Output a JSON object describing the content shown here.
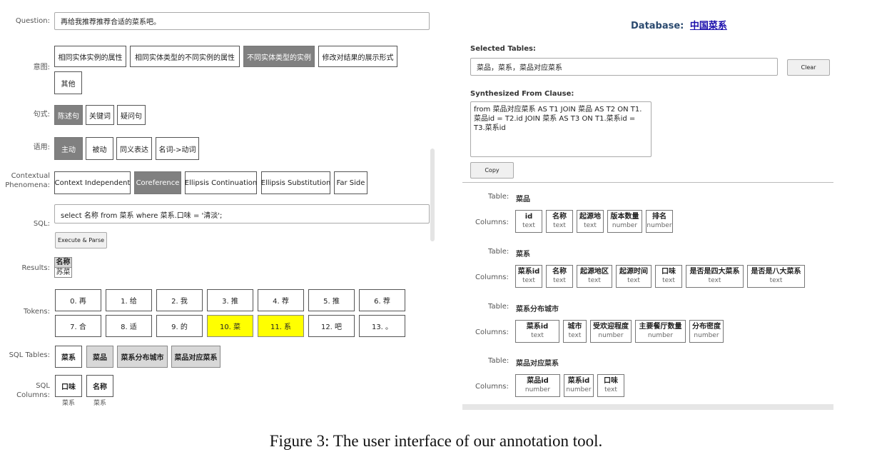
{
  "left": {
    "question": {
      "label": "Question:",
      "value": "再给我推荐推荐合适的菜系吧。"
    },
    "intent": {
      "label": "意图:",
      "options": [
        "相同实体实例的属性",
        "相同实体类型的不同实例的属性",
        "不同实体类型的实例",
        "修改对结果的展示形式",
        "其他"
      ],
      "selected": 2
    },
    "sentence_type": {
      "label": "句式:",
      "options": [
        "陈述句",
        "关键词",
        "疑问句"
      ],
      "selected": 0
    },
    "voice": {
      "label": "语用:",
      "options": [
        "主动",
        "被动",
        "同义表达",
        "名词->动词"
      ],
      "selected": 0
    },
    "contextual": {
      "label_1": "Contextual",
      "label_2": "Phenomena:",
      "options": [
        "Context Independent",
        "Coreference",
        "Ellipsis Continuation",
        "Ellipsis Substitution",
        "Far Side"
      ],
      "selected": 1
    },
    "sql": {
      "label": "SQL:",
      "value": "select 名称 from 菜系 where 菜系.口味 = '清淡';"
    },
    "execute_button": "Execute & Parse",
    "results": {
      "label": "Results:",
      "header": "名称",
      "value": "苏菜"
    },
    "tokens": {
      "label": "Tokens:",
      "items": [
        "0. 再",
        "1. 给",
        "2. 我",
        "3. 推",
        "4. 荐",
        "5. 推",
        "6. 荐",
        "7. 合",
        "8. 适",
        "9. 的",
        "10. 菜",
        "11. 系",
        "12. 吧",
        "13. 。"
      ],
      "highlighted": [
        10,
        11
      ]
    },
    "sql_tables": {
      "label": "SQL Tables:",
      "items": [
        "菜系",
        "菜品",
        "菜系分布城市",
        "菜品对应菜系"
      ]
    },
    "sql_columns": {
      "label_1": "SQL",
      "label_2": "Columns:",
      "items": [
        {
          "name": "口味",
          "table": "菜系"
        },
        {
          "name": "名称",
          "table": "菜系"
        }
      ]
    }
  },
  "right": {
    "db_label": "Database:",
    "db_name": "中国菜系",
    "selected_tables": {
      "label": "Selected Tables:",
      "value": "菜品，菜系，菜品对应菜系"
    },
    "clear_button": "Clear",
    "from_clause": {
      "label": "Synthesized From Clause:",
      "value": "from 菜品对应菜系 AS T1 JOIN 菜品 AS T2 ON T1.菜品id = T2.id JOIN 菜系 AS T3 ON T1.菜系id = T3.菜系id"
    },
    "copy_button": "Copy",
    "table_label": "Table:",
    "columns_label": "Columns:",
    "tables": [
      {
        "name": "菜品",
        "columns": [
          {
            "n": "id",
            "t": "text"
          },
          {
            "n": "名称",
            "t": "text"
          },
          {
            "n": "起源地",
            "t": "text"
          },
          {
            "n": "版本数量",
            "t": "number"
          },
          {
            "n": "排名",
            "t": "number"
          }
        ]
      },
      {
        "name": "菜系",
        "columns": [
          {
            "n": "菜系id",
            "t": "text"
          },
          {
            "n": "名称",
            "t": "text"
          },
          {
            "n": "起源地区",
            "t": "text"
          },
          {
            "n": "起源时间",
            "t": "text"
          },
          {
            "n": "口味",
            "t": "text"
          },
          {
            "n": "是否是四大菜系",
            "t": "text"
          },
          {
            "n": "是否是八大菜系",
            "t": "text"
          }
        ]
      },
      {
        "name": "菜系分布城市",
        "columns": [
          {
            "n": "菜系id",
            "t": "text"
          },
          {
            "n": "城市",
            "t": "text"
          },
          {
            "n": "受欢迎程度",
            "t": "number"
          },
          {
            "n": "主要餐厅数量",
            "t": "number"
          },
          {
            "n": "分布密度",
            "t": "number"
          }
        ]
      },
      {
        "name": "菜品对应菜系",
        "columns": [
          {
            "n": "菜品id",
            "t": "number"
          },
          {
            "n": "菜系id",
            "t": "number"
          },
          {
            "n": "口味",
            "t": "text"
          }
        ]
      }
    ]
  },
  "caption": "Figure 3: The user interface of our annotation tool."
}
